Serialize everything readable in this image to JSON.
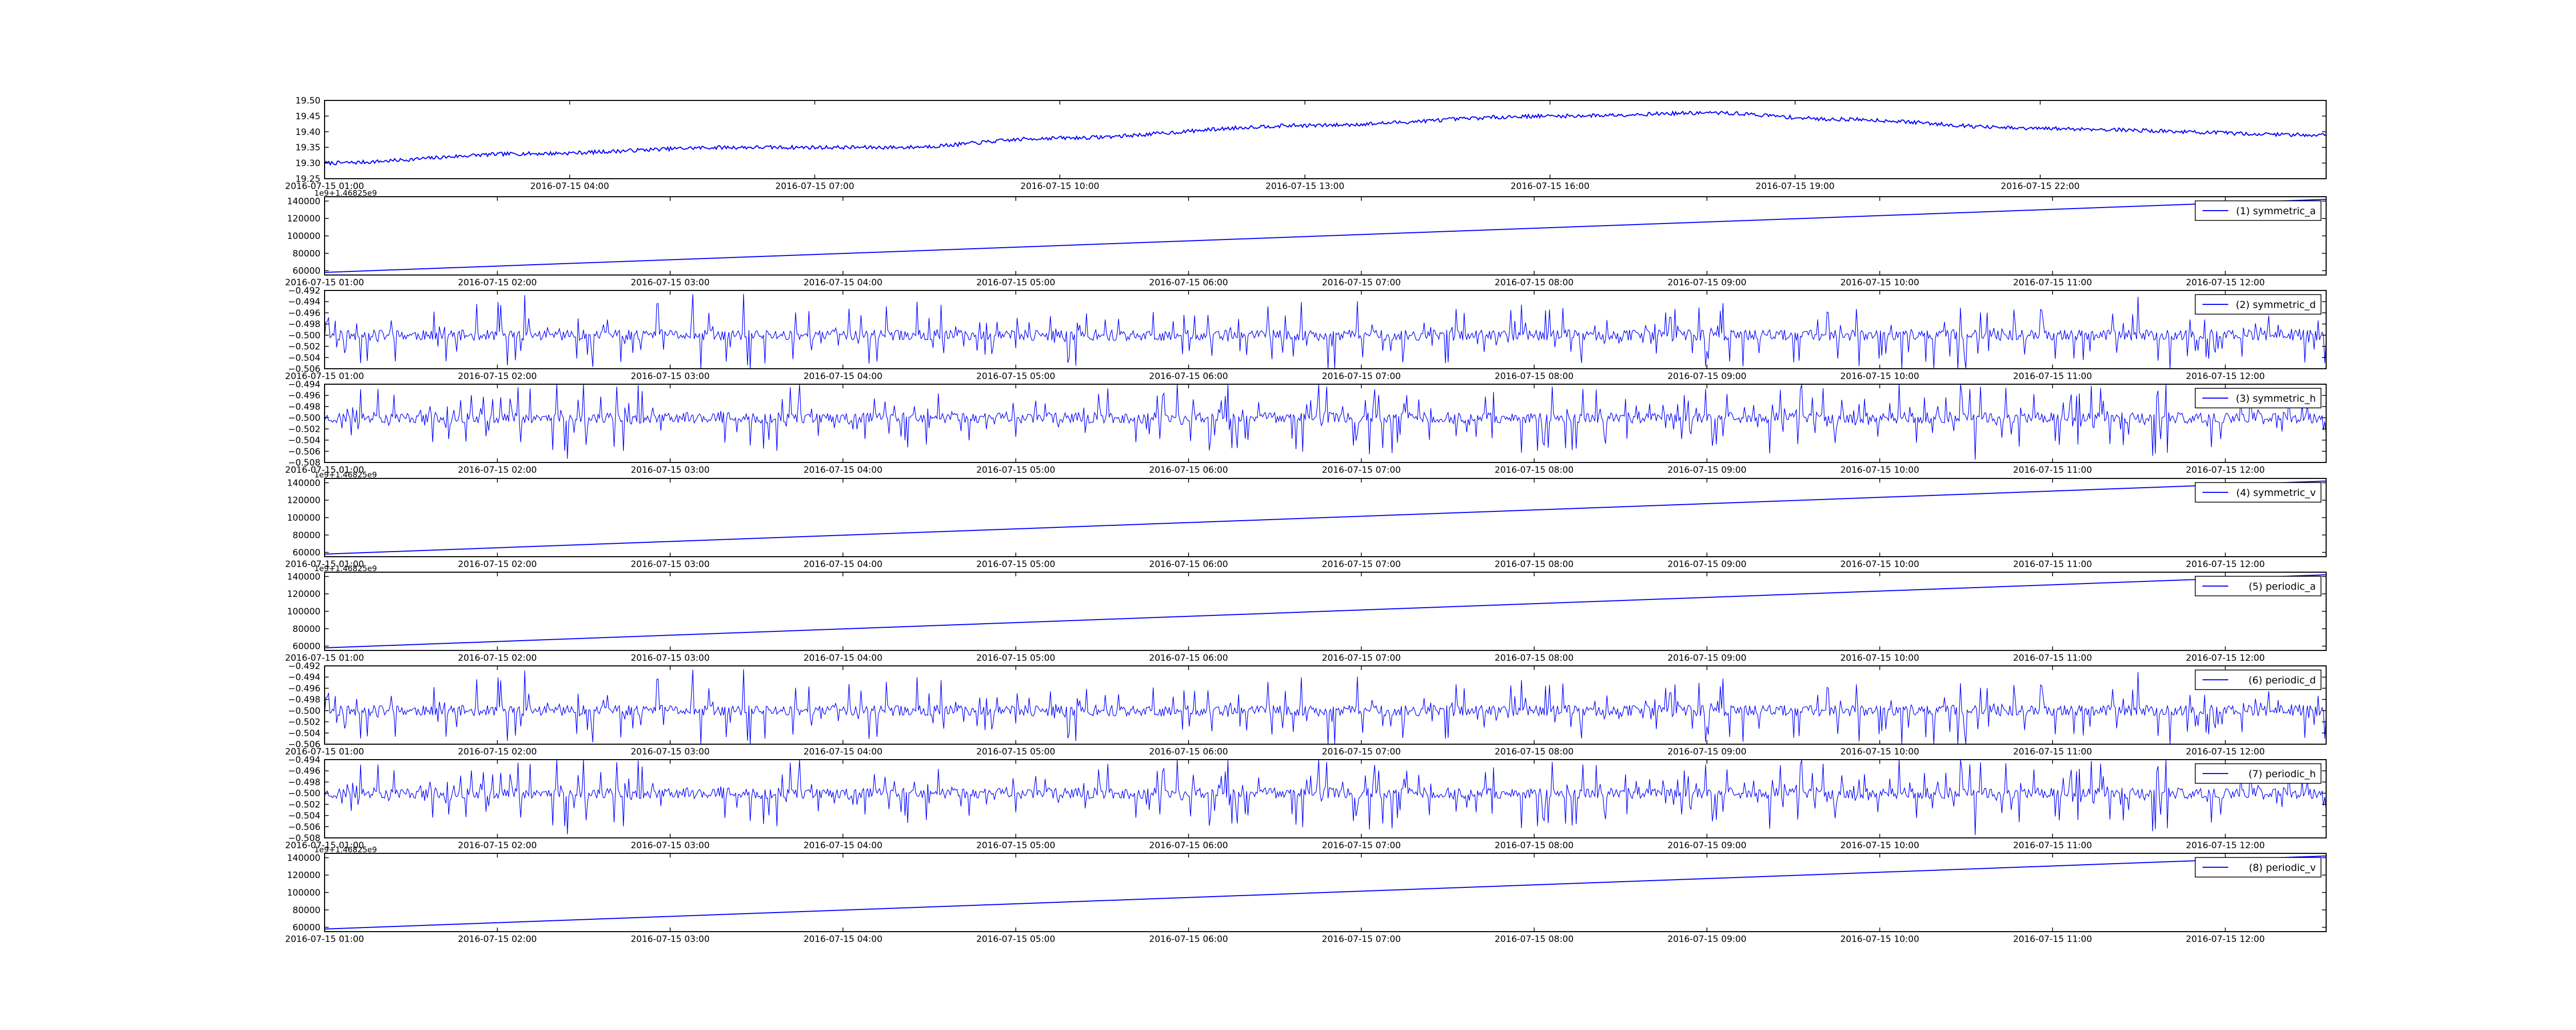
{
  "figure": {
    "background": "#ffffff",
    "line_color": "#0000ff",
    "axes_color": "#000000"
  },
  "chart_data": [
    {
      "type": "line",
      "id": "temperature",
      "title": "",
      "xlabel": "",
      "ylabel": "",
      "legend": "",
      "offset_label": "",
      "x_kind": "time",
      "xlim": [
        "2016-07-15 01:00",
        "2016-07-16 01:30"
      ],
      "xticks": [
        "2016-07-15 01:00",
        "2016-07-15 04:00",
        "2016-07-15 07:00",
        "2016-07-15 10:00",
        "2016-07-15 13:00",
        "2016-07-15 16:00",
        "2016-07-15 19:00",
        "2016-07-15 22:00"
      ],
      "ylim": [
        19.25,
        19.5
      ],
      "yticks": [
        "19.25",
        "19.30",
        "19.35",
        "19.40",
        "19.45",
        "19.50"
      ],
      "shape": "smooth",
      "anchors": [
        [
          "2016-07-15 01:00",
          19.3
        ],
        [
          "2016-07-15 03:30",
          19.33
        ],
        [
          "2016-07-15 06:00",
          19.35
        ],
        [
          "2016-07-15 08:00",
          19.35
        ],
        [
          "2016-07-15 10:00",
          19.38
        ],
        [
          "2016-07-15 13:00",
          19.42
        ],
        [
          "2016-07-15 16:00",
          19.45
        ],
        [
          "2016-07-15 18:00",
          19.46
        ],
        [
          "2016-07-15 19:30",
          19.44
        ],
        [
          "2016-07-15 22:00",
          19.41
        ],
        [
          "2016-07-16 01:30",
          19.39
        ]
      ],
      "noise": 0.006
    },
    {
      "type": "line",
      "id": "symmetric_a",
      "legend": "(1) symmetric_a",
      "offset_label": "1e9+1.46825e9",
      "x_kind": "time",
      "xlim": [
        "2016-07-15 01:00",
        "2016-07-15 12:35"
      ],
      "xticks": [
        "2016-07-15 01:00",
        "2016-07-15 02:00",
        "2016-07-15 03:00",
        "2016-07-15 04:00",
        "2016-07-15 05:00",
        "2016-07-15 06:00",
        "2016-07-15 07:00",
        "2016-07-15 08:00",
        "2016-07-15 09:00",
        "2016-07-15 10:00",
        "2016-07-15 11:00",
        "2016-07-15 12:00"
      ],
      "ylim": [
        55000,
        145000
      ],
      "yticks": [
        "60000",
        "80000",
        "100000",
        "120000",
        "140000"
      ],
      "shape": "linear",
      "start": 58000,
      "end": 142000
    },
    {
      "type": "line",
      "id": "symmetric_d",
      "legend": "(2) symmetric_d",
      "offset_label": "",
      "x_kind": "time",
      "xlim": [
        "2016-07-15 01:00",
        "2016-07-15 12:35"
      ],
      "xticks": [
        "2016-07-15 01:00",
        "2016-07-15 02:00",
        "2016-07-15 03:00",
        "2016-07-15 04:00",
        "2016-07-15 05:00",
        "2016-07-15 06:00",
        "2016-07-15 07:00",
        "2016-07-15 08:00",
        "2016-07-15 09:00",
        "2016-07-15 10:00",
        "2016-07-15 11:00",
        "2016-07-15 12:00"
      ],
      "ylim": [
        -0.506,
        -0.492
      ],
      "yticks": [
        "−0.506",
        "−0.504",
        "−0.502",
        "−0.500",
        "−0.498",
        "−0.496",
        "−0.494",
        "−0.492"
      ],
      "shape": "noise",
      "center": -0.5,
      "amplitude": 0.0055,
      "seed": 11
    },
    {
      "type": "line",
      "id": "symmetric_h",
      "legend": "(3) symmetric_h",
      "offset_label": "",
      "x_kind": "time",
      "xlim": [
        "2016-07-15 01:00",
        "2016-07-15 12:35"
      ],
      "xticks": [
        "2016-07-15 01:00",
        "2016-07-15 02:00",
        "2016-07-15 03:00",
        "2016-07-15 04:00",
        "2016-07-15 05:00",
        "2016-07-15 06:00",
        "2016-07-15 07:00",
        "2016-07-15 08:00",
        "2016-07-15 09:00",
        "2016-07-15 10:00",
        "2016-07-15 11:00",
        "2016-07-15 12:00"
      ],
      "ylim": [
        -0.508,
        -0.494
      ],
      "yticks": [
        "−0.508",
        "−0.506",
        "−0.504",
        "−0.502",
        "−0.500",
        "−0.498",
        "−0.496",
        "−0.494"
      ],
      "shape": "noise",
      "center": -0.5,
      "amplitude": 0.0055,
      "seed": 23
    },
    {
      "type": "line",
      "id": "symmetric_v",
      "legend": "(4) symmetric_v",
      "offset_label": "1e9+1.46825e9",
      "x_kind": "time",
      "xlim": [
        "2016-07-15 01:00",
        "2016-07-15 12:35"
      ],
      "xticks": [
        "2016-07-15 01:00",
        "2016-07-15 02:00",
        "2016-07-15 03:00",
        "2016-07-15 04:00",
        "2016-07-15 05:00",
        "2016-07-15 06:00",
        "2016-07-15 07:00",
        "2016-07-15 08:00",
        "2016-07-15 09:00",
        "2016-07-15 10:00",
        "2016-07-15 11:00",
        "2016-07-15 12:00"
      ],
      "ylim": [
        55000,
        145000
      ],
      "yticks": [
        "60000",
        "80000",
        "100000",
        "120000",
        "140000"
      ],
      "shape": "linear",
      "start": 58000,
      "end": 142000
    },
    {
      "type": "line",
      "id": "periodic_a",
      "legend": "(5) periodic_a",
      "offset_label": "1e9+1.46825e9",
      "x_kind": "time",
      "xlim": [
        "2016-07-15 01:00",
        "2016-07-15 12:35"
      ],
      "xticks": [
        "2016-07-15 01:00",
        "2016-07-15 02:00",
        "2016-07-15 03:00",
        "2016-07-15 04:00",
        "2016-07-15 05:00",
        "2016-07-15 06:00",
        "2016-07-15 07:00",
        "2016-07-15 08:00",
        "2016-07-15 09:00",
        "2016-07-15 10:00",
        "2016-07-15 11:00",
        "2016-07-15 12:00"
      ],
      "ylim": [
        55000,
        145000
      ],
      "yticks": [
        "60000",
        "80000",
        "100000",
        "120000",
        "140000"
      ],
      "shape": "linear",
      "start": 58000,
      "end": 142000
    },
    {
      "type": "line",
      "id": "periodic_d",
      "legend": "(6) periodic_d",
      "offset_label": "",
      "x_kind": "time",
      "xlim": [
        "2016-07-15 01:00",
        "2016-07-15 12:35"
      ],
      "xticks": [
        "2016-07-15 01:00",
        "2016-07-15 02:00",
        "2016-07-15 03:00",
        "2016-07-15 04:00",
        "2016-07-15 05:00",
        "2016-07-15 06:00",
        "2016-07-15 07:00",
        "2016-07-15 08:00",
        "2016-07-15 09:00",
        "2016-07-15 10:00",
        "2016-07-15 11:00",
        "2016-07-15 12:00"
      ],
      "ylim": [
        -0.506,
        -0.492
      ],
      "yticks": [
        "−0.506",
        "−0.504",
        "−0.502",
        "−0.500",
        "−0.498",
        "−0.496",
        "−0.494",
        "−0.492"
      ],
      "shape": "noise",
      "center": -0.5,
      "amplitude": 0.0055,
      "seed": 11
    },
    {
      "type": "line",
      "id": "periodic_h",
      "legend": "(7) periodic_h",
      "offset_label": "",
      "x_kind": "time",
      "xlim": [
        "2016-07-15 01:00",
        "2016-07-15 12:35"
      ],
      "xticks": [
        "2016-07-15 01:00",
        "2016-07-15 02:00",
        "2016-07-15 03:00",
        "2016-07-15 04:00",
        "2016-07-15 05:00",
        "2016-07-15 06:00",
        "2016-07-15 07:00",
        "2016-07-15 08:00",
        "2016-07-15 09:00",
        "2016-07-15 10:00",
        "2016-07-15 11:00",
        "2016-07-15 12:00"
      ],
      "ylim": [
        -0.508,
        -0.494
      ],
      "yticks": [
        "−0.508",
        "−0.506",
        "−0.504",
        "−0.502",
        "−0.500",
        "−0.498",
        "−0.496",
        "−0.494"
      ],
      "shape": "noise",
      "center": -0.5,
      "amplitude": 0.0055,
      "seed": 23
    },
    {
      "type": "line",
      "id": "periodic_v",
      "legend": "(8) periodic_v",
      "offset_label": "1e9+1.46825e9",
      "x_kind": "time",
      "xlim": [
        "2016-07-15 01:00",
        "2016-07-15 12:35"
      ],
      "xticks": [
        "2016-07-15 01:00",
        "2016-07-15 02:00",
        "2016-07-15 03:00",
        "2016-07-15 04:00",
        "2016-07-15 05:00",
        "2016-07-15 06:00",
        "2016-07-15 07:00",
        "2016-07-15 08:00",
        "2016-07-15 09:00",
        "2016-07-15 10:00",
        "2016-07-15 11:00",
        "2016-07-15 12:00"
      ],
      "ylim": [
        55000,
        145000
      ],
      "yticks": [
        "60000",
        "80000",
        "100000",
        "120000",
        "140000"
      ],
      "shape": "linear",
      "start": 58000,
      "end": 142000
    }
  ]
}
